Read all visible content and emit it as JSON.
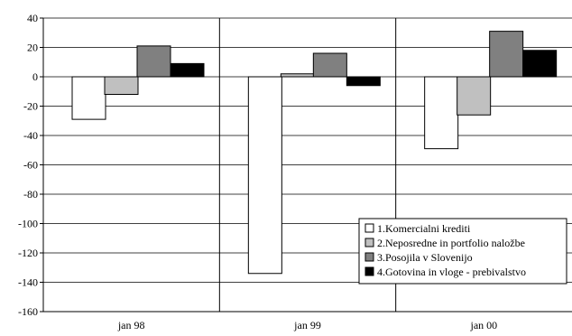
{
  "chart_data": {
    "type": "bar",
    "title": "",
    "xlabel": "",
    "ylabel": "",
    "categories": [
      "jan 98",
      "jan 99",
      "jan 00"
    ],
    "ylim": [
      -160,
      40
    ],
    "yticks": [
      40,
      20,
      0,
      -20,
      -40,
      -60,
      -80,
      -100,
      -120,
      -140,
      -160
    ],
    "grid": true,
    "legend_position": "bottom-right",
    "series": [
      {
        "name": "1.Komercialni krediti",
        "values": [
          -29,
          -134,
          -49
        ],
        "color": "#ffffff"
      },
      {
        "name": "2.Neposredne in portfolio naložbe",
        "values": [
          -12,
          2,
          -26
        ],
        "color": "#c0c0c0"
      },
      {
        "name": "3.Posojila v Slovenijo",
        "values": [
          21,
          16,
          31
        ],
        "color": "#808080"
      },
      {
        "name": "4.Gotovina in vloge - prebivalstvo",
        "values": [
          9,
          -6,
          18
        ],
        "color": "#000000"
      }
    ]
  }
}
